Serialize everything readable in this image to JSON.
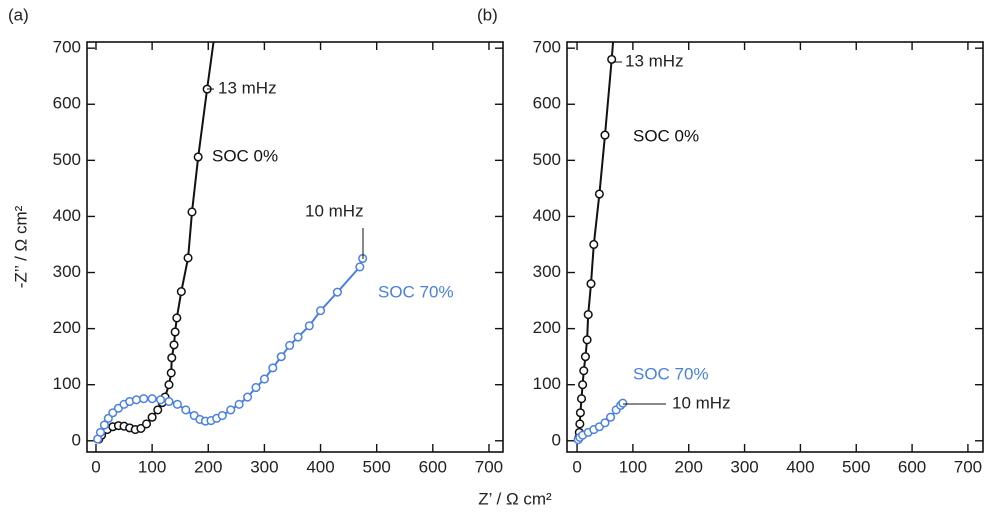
{
  "chart_data": [
    {
      "type": "scatter-line",
      "panel_label": "(a)",
      "xlabel": "Z’ / Ω cm²",
      "ylabel": "-Z’’ / Ω cm²",
      "xlim": [
        -16,
        725
      ],
      "ylim": [
        -20,
        711
      ],
      "xticks": [
        0,
        100,
        200,
        300,
        400,
        500,
        600,
        700
      ],
      "yticks": [
        0,
        100,
        200,
        300,
        400,
        500,
        600,
        700
      ],
      "annotations": [
        "13 mHz",
        "10 mHz"
      ],
      "series": [
        {
          "name": "SOC 0%",
          "color": "#111111",
          "x": [
            5,
            10,
            20,
            30,
            40,
            50,
            60,
            70,
            80,
            90,
            100,
            110,
            118,
            123,
            130,
            134,
            135,
            139,
            141,
            144,
            152,
            164,
            171,
            182,
            198,
            212
          ],
          "values": [
            3,
            10,
            20,
            25,
            27,
            26,
            23,
            20,
            22,
            30,
            42,
            55,
            68,
            78,
            100,
            121,
            148,
            171,
            194,
            219,
            266,
            326,
            408,
            506,
            627,
            730
          ]
        },
        {
          "name": "SOC 70%",
          "color": "#4a80e6",
          "x": [
            3,
            8,
            15,
            22,
            30,
            40,
            50,
            60,
            72,
            85,
            100,
            115,
            130,
            145,
            160,
            175,
            185,
            195,
            205,
            215,
            225,
            240,
            255,
            270,
            285,
            300,
            315,
            330,
            345,
            360,
            380,
            400,
            430,
            470,
            475
          ],
          "values": [
            3,
            15,
            28,
            40,
            50,
            58,
            65,
            70,
            73,
            75,
            75,
            73,
            70,
            65,
            55,
            45,
            38,
            35,
            36,
            40,
            45,
            55,
            65,
            78,
            95,
            110,
            130,
            150,
            170,
            185,
            205,
            232,
            265,
            310,
            325
          ]
        }
      ]
    },
    {
      "type": "scatter-line",
      "panel_label": "(b)",
      "xlim": [
        -18,
        727
      ],
      "ylim": [
        -20,
        711
      ],
      "xticks": [
        0,
        100,
        200,
        300,
        400,
        500,
        600,
        700
      ],
      "yticks": [
        0,
        100,
        200,
        300,
        400,
        500,
        600,
        700
      ],
      "annotations": [
        "13 mHz",
        "10 mHz"
      ],
      "series": [
        {
          "name": "SOC 0%",
          "color": "#111111",
          "x": [
            3,
            4,
            5,
            6,
            8,
            10,
            12,
            15,
            18,
            20,
            25,
            30,
            40,
            50,
            62,
            66
          ],
          "values": [
            5,
            15,
            30,
            50,
            75,
            100,
            125,
            150,
            180,
            225,
            280,
            350,
            440,
            545,
            680,
            730
          ]
        },
        {
          "name": "SOC 70%",
          "color": "#4a80e6",
          "x": [
            2,
            5,
            10,
            20,
            30,
            40,
            50,
            60,
            70,
            78,
            82
          ],
          "values": [
            2,
            6,
            10,
            15,
            20,
            25,
            32,
            42,
            55,
            63,
            67
          ]
        }
      ]
    }
  ]
}
